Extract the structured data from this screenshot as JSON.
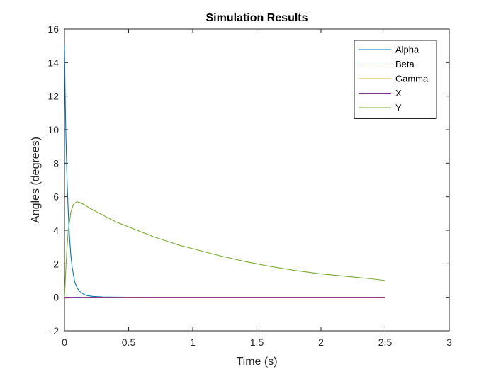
{
  "chart_data": {
    "type": "line",
    "title": "Simulation Results",
    "xlabel": "Time (s)",
    "ylabel": "Angles (degrees)",
    "xlim": [
      0,
      3
    ],
    "ylim": [
      -2,
      16
    ],
    "x_ticks": [
      0,
      0.5,
      1,
      1.5,
      2,
      2.5,
      3
    ],
    "x_tick_labels": [
      "0",
      "0.5",
      "1",
      "1.5",
      "2",
      "2.5",
      "3"
    ],
    "y_ticks": [
      -2,
      0,
      2,
      4,
      6,
      8,
      10,
      12,
      14,
      16
    ],
    "y_tick_labels": [
      "-2",
      "0",
      "2",
      "4",
      "6",
      "8",
      "10",
      "12",
      "14",
      "16"
    ],
    "grid": false,
    "legend_position": "top-right",
    "series": [
      {
        "name": "Alpha",
        "color": "#0072BD",
        "x": [
          0,
          0.005,
          0.01,
          0.02,
          0.03,
          0.04,
          0.05,
          0.06,
          0.08,
          0.1,
          0.12,
          0.15,
          0.18,
          0.22,
          0.3,
          0.4,
          0.6,
          1.0,
          1.5,
          2.0,
          2.5
        ],
        "y": [
          15.0,
          12.2,
          10.0,
          7.0,
          5.0,
          3.5,
          2.5,
          1.8,
          0.9,
          0.55,
          0.35,
          0.18,
          0.1,
          0.05,
          0.02,
          0.01,
          0.0,
          0.0,
          0.0,
          0.0,
          0.0
        ]
      },
      {
        "name": "Beta",
        "color": "#D95319",
        "x": [
          0,
          0.05,
          0.1,
          0.2,
          0.5,
          1.0,
          1.5,
          2.0,
          2.5
        ],
        "y": [
          -0.05,
          -0.03,
          -0.02,
          -0.01,
          0.0,
          0.0,
          0.0,
          0.0,
          0.0
        ]
      },
      {
        "name": "Gamma",
        "color": "#EDB120",
        "x": [
          0,
          0.5,
          1.0,
          1.5,
          2.0,
          2.5
        ],
        "y": [
          0,
          0,
          0,
          0,
          0,
          0
        ]
      },
      {
        "name": "X",
        "color": "#7E2F8E",
        "x": [
          0,
          0.5,
          1.0,
          1.5,
          2.0,
          2.5
        ],
        "y": [
          0,
          0,
          0,
          0,
          0,
          0
        ]
      },
      {
        "name": "Y",
        "color": "#77AC30",
        "x": [
          0,
          0.01,
          0.02,
          0.03,
          0.05,
          0.07,
          0.09,
          0.1,
          0.12,
          0.15,
          0.2,
          0.3,
          0.4,
          0.5,
          0.6,
          0.7,
          0.8,
          0.9,
          1.0,
          1.2,
          1.4,
          1.5,
          1.6,
          1.8,
          2.0,
          2.2,
          2.4,
          2.5
        ],
        "y": [
          0,
          1.6,
          3.0,
          4.0,
          5.1,
          5.55,
          5.68,
          5.7,
          5.65,
          5.55,
          5.3,
          4.9,
          4.5,
          4.2,
          3.9,
          3.6,
          3.35,
          3.1,
          2.9,
          2.5,
          2.15,
          2.0,
          1.85,
          1.6,
          1.4,
          1.25,
          1.1,
          1.0
        ]
      }
    ]
  }
}
